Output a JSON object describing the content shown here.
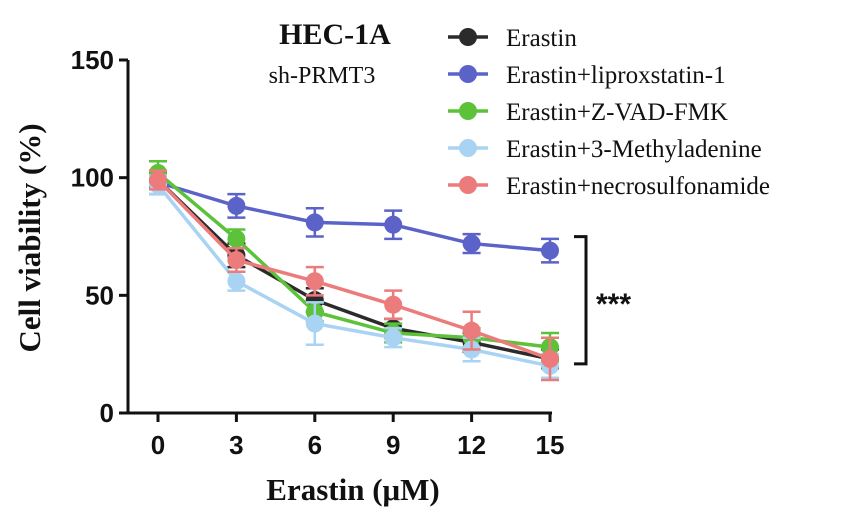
{
  "chart_data": {
    "type": "line",
    "title": "HEC-1A",
    "subtitle": "sh-PRMT3",
    "xlabel": "Erastin (μM)",
    "ylabel": "Cell viability (%)",
    "x": [
      0,
      3,
      6,
      9,
      12,
      15
    ],
    "xticks": [
      "0",
      "3",
      "6",
      "9",
      "12",
      "15"
    ],
    "yticks": [
      "0",
      "50",
      "100",
      "150"
    ],
    "ylim": [
      0,
      150
    ],
    "grid": false,
    "legend_position": "top-right",
    "annotation": "***",
    "series": [
      {
        "name": "Erastin",
        "color": "#2b2b2b",
        "values": [
          99,
          67,
          48,
          36,
          30,
          23
        ],
        "errors": [
          3,
          5,
          5,
          4,
          4,
          4
        ]
      },
      {
        "name": "Erastin+liproxstatin-1",
        "color": "#5b63c8",
        "values": [
          98,
          88,
          81,
          80,
          72,
          69
        ],
        "errors": [
          5,
          5,
          6,
          6,
          4,
          5
        ]
      },
      {
        "name": "Erastin+Z-VAD-FMK",
        "color": "#5cc23a",
        "values": [
          102,
          74,
          43,
          34,
          32,
          28
        ],
        "errors": [
          5,
          4,
          4,
          4,
          4,
          6
        ]
      },
      {
        "name": "Erastin+3-Methyladenine",
        "color": "#a9d3f2",
        "values": [
          97,
          56,
          38,
          32,
          27,
          20
        ],
        "errors": [
          4,
          4,
          9,
          4,
          5,
          5
        ]
      },
      {
        "name": "Erastin+necrosulfonamide",
        "color": "#ec7b7b",
        "values": [
          99,
          65,
          56,
          46,
          35,
          23
        ],
        "errors": [
          4,
          5,
          6,
          6,
          8,
          9
        ]
      }
    ]
  }
}
